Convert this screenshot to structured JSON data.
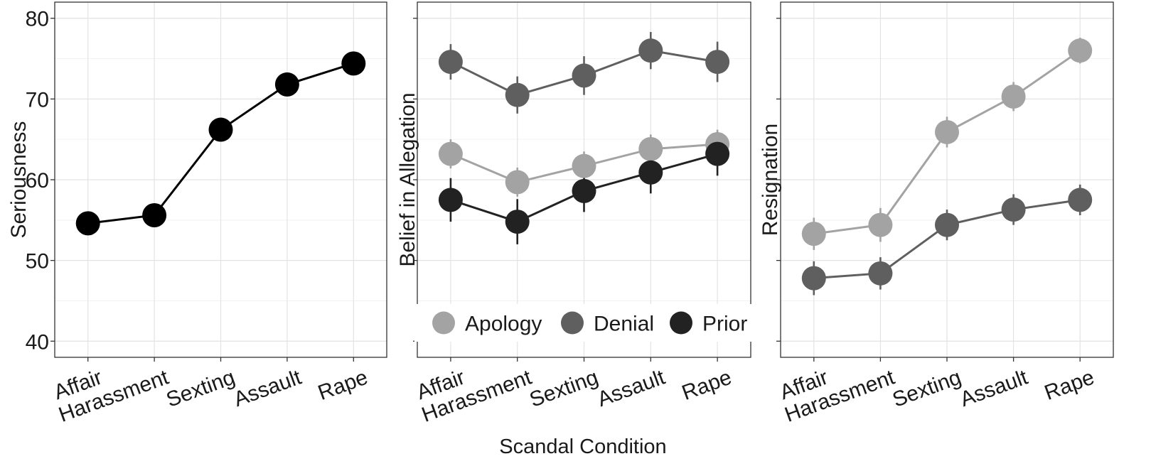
{
  "figure": {
    "xlabel": "Scandal Condition"
  },
  "chart_data": [
    {
      "type": "line",
      "ylabel": "Seriousness",
      "categories": [
        "Affair",
        "Harassment",
        "Sexting",
        "Assault",
        "Rape"
      ],
      "ylim": [
        38,
        82
      ],
      "yticks": [
        40,
        50,
        60,
        70,
        80
      ],
      "show_tick_labels": true,
      "grid": true,
      "series": [
        {
          "color": "#000000",
          "values": [
            54.6,
            55.6,
            66.2,
            71.8,
            74.4
          ],
          "err": [
            1.2,
            1.2,
            1.0,
            1.0,
            0.9
          ]
        }
      ]
    },
    {
      "type": "line",
      "ylabel": "Belief in Allegation",
      "categories": [
        "Affair",
        "Harassment",
        "Sexting",
        "Assault",
        "Rape"
      ],
      "ylim": [
        38,
        82
      ],
      "yticks": [
        40,
        50,
        60,
        70,
        80
      ],
      "show_tick_labels": false,
      "grid": true,
      "legend_position": "bottom",
      "series": [
        {
          "name": "Apology",
          "color": "#a3a3a3",
          "values": [
            63.2,
            59.7,
            61.7,
            63.8,
            64.4
          ],
          "err": [
            1.8,
            1.8,
            1.8,
            1.8,
            1.8
          ]
        },
        {
          "name": "Denial",
          "color": "#5f5f5f",
          "values": [
            74.6,
            70.5,
            72.9,
            76.0,
            74.6
          ],
          "err": [
            2.2,
            2.3,
            2.4,
            2.3,
            2.5
          ]
        },
        {
          "name": "Prior",
          "color": "#222222",
          "values": [
            57.5,
            54.8,
            58.6,
            60.9,
            63.2
          ],
          "err": [
            2.7,
            2.8,
            2.6,
            2.6,
            2.7
          ]
        }
      ]
    },
    {
      "type": "line",
      "ylabel": "Resignation",
      "categories": [
        "Affair",
        "Harassment",
        "Sexting",
        "Assault",
        "Rape"
      ],
      "ylim": [
        38,
        82
      ],
      "yticks": [
        40,
        50,
        60,
        70,
        80
      ],
      "show_tick_labels": false,
      "grid": true,
      "series": [
        {
          "name": "Apology",
          "color": "#a3a3a3",
          "values": [
            53.3,
            54.4,
            65.9,
            70.3,
            76.0
          ],
          "err": [
            2.0,
            2.1,
            1.9,
            1.8,
            1.6
          ]
        },
        {
          "name": "Denial",
          "color": "#5f5f5f",
          "values": [
            47.8,
            48.4,
            54.4,
            56.3,
            57.5
          ],
          "err": [
            2.1,
            2.0,
            1.9,
            1.9,
            1.9
          ]
        }
      ]
    }
  ]
}
